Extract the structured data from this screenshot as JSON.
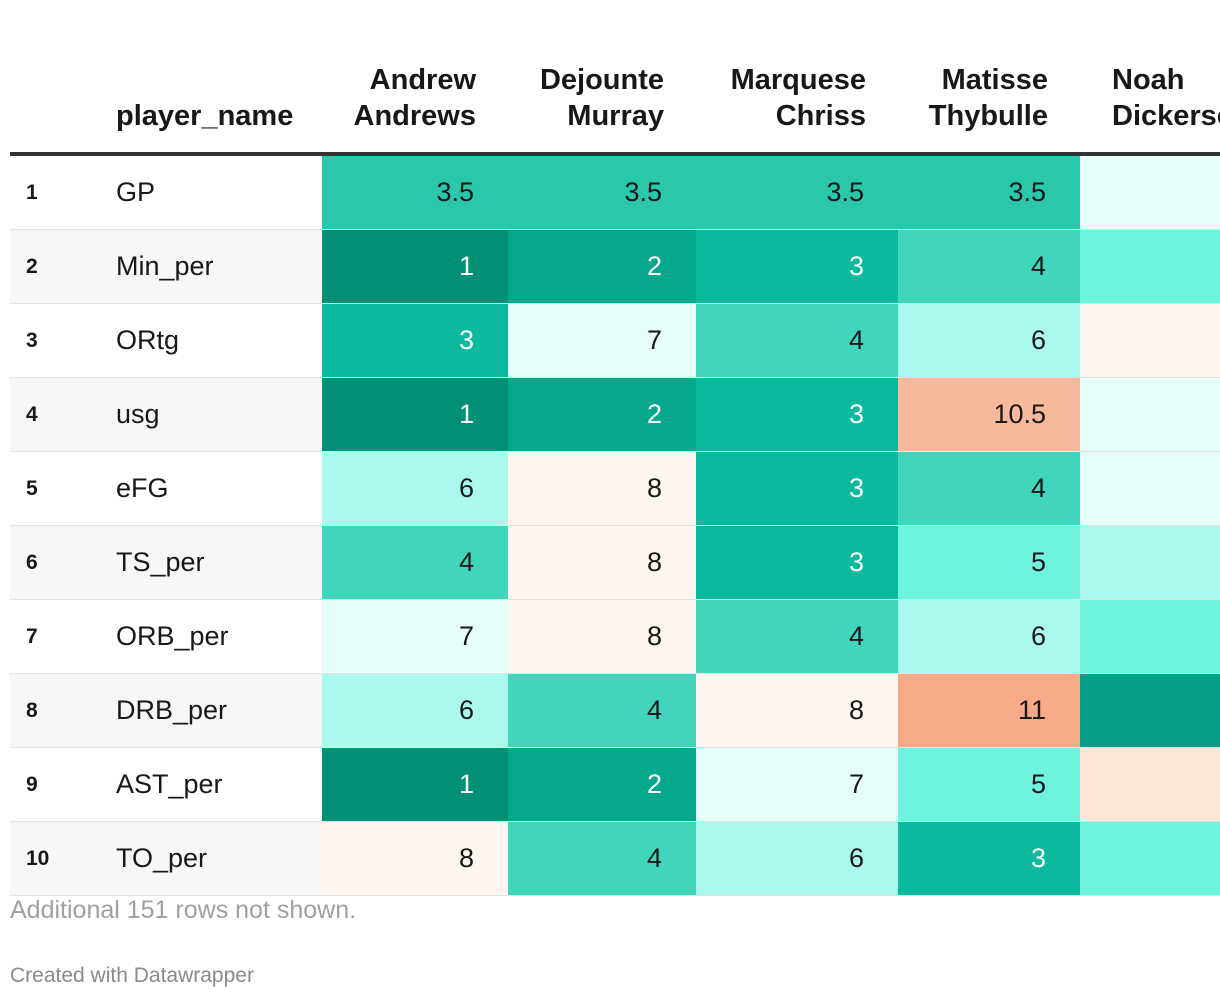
{
  "chart_data": {
    "type": "table",
    "title": "",
    "columns": {
      "index": "",
      "name": "player_name",
      "players": [
        {
          "first": "Andrew",
          "last": "Andrews"
        },
        {
          "first": "Dejounte",
          "last": "Murray"
        },
        {
          "first": "Marquese",
          "last": "Chriss"
        },
        {
          "first": "Matisse",
          "last": "Thybulle"
        },
        {
          "first": "Noah",
          "last": "Dickerson"
        }
      ]
    },
    "rows": [
      {
        "idx": "1",
        "stat": "GP",
        "values": [
          "3.5",
          "3.5",
          "3.5",
          "3.5",
          ""
        ]
      },
      {
        "idx": "2",
        "stat": "Min_per",
        "values": [
          "1",
          "2",
          "3",
          "4",
          ""
        ]
      },
      {
        "idx": "3",
        "stat": "ORtg",
        "values": [
          "3",
          "7",
          "4",
          "6",
          ""
        ]
      },
      {
        "idx": "4",
        "stat": "usg",
        "values": [
          "1",
          "2",
          "3",
          "10.5",
          ""
        ]
      },
      {
        "idx": "5",
        "stat": "eFG",
        "values": [
          "6",
          "8",
          "3",
          "4",
          ""
        ]
      },
      {
        "idx": "6",
        "stat": "TS_per",
        "values": [
          "4",
          "8",
          "3",
          "5",
          ""
        ]
      },
      {
        "idx": "7",
        "stat": "ORB_per",
        "values": [
          "7",
          "8",
          "4",
          "6",
          ""
        ]
      },
      {
        "idx": "8",
        "stat": "DRB_per",
        "values": [
          "6",
          "4",
          "8",
          "11",
          ""
        ]
      },
      {
        "idx": "9",
        "stat": "AST_per",
        "values": [
          "1",
          "2",
          "7",
          "5",
          ""
        ]
      },
      {
        "idx": "10",
        "stat": "TO_per",
        "values": [
          "8",
          "4",
          "6",
          "3",
          ""
        ]
      }
    ],
    "clipped_column_colors": [
      "#e4fdf8",
      "#6ef4de",
      "#fdf5f0",
      "#e4fdf8",
      "#e4fdf8",
      "#aaf8ec",
      "#6ef4de",
      "#079f87",
      "#fde6da",
      "#6ef4de"
    ],
    "color_scale": {
      "1": "#018f76",
      "2": "#06a88d",
      "3": "#0bba9e",
      "3.5": "#2ac7ab",
      "4": "#41d6bc",
      "5": "#6ef4de",
      "6": "#aaf9ec",
      "7": "#e4fdf8",
      "8": "#fdf5f0",
      "10.5": "#f6b99c",
      "11": "#f6aa88"
    },
    "light_text_values": [
      "1",
      "2",
      "3"
    ]
  },
  "notes": "Additional 151 rows not shown.",
  "credit": "Created with Datawrapper"
}
